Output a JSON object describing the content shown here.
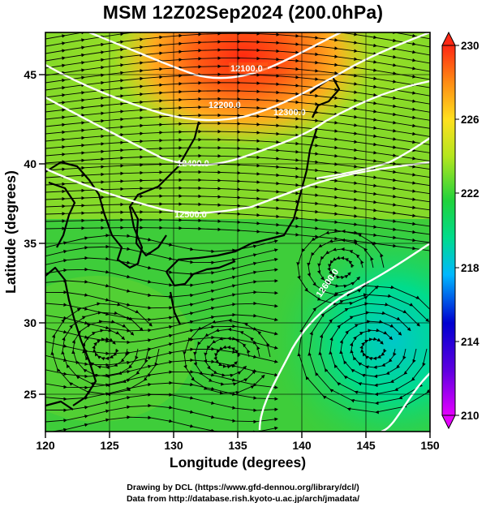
{
  "title": "MSM 12Z02Sep2024 (200.0hPa)",
  "x_axis": {
    "label": "Longitude (degrees)",
    "ticks": [
      "120",
      "125",
      "130",
      "135",
      "140",
      "145",
      "150"
    ],
    "range": [
      120,
      150
    ]
  },
  "y_axis": {
    "label": "Latitude  (degrees)",
    "ticks": [
      "25",
      "30",
      "35",
      "40",
      "45"
    ],
    "range": [
      22.4,
      47.6
    ]
  },
  "colorbar": {
    "labels": [
      "230",
      "226",
      "222",
      "218",
      "214",
      "210"
    ],
    "range": [
      210,
      230
    ],
    "colors": [
      "#e400ff",
      "#0000d0",
      "#00b8ff",
      "#00dc8c",
      "#20d23c",
      "#b4e61e",
      "#ffc81e",
      "#ff3c14"
    ]
  },
  "contours": [
    {
      "label": "12100.0"
    },
    {
      "label": "12200.0"
    },
    {
      "label": "12300.0"
    },
    {
      "label": "12400.0"
    },
    {
      "label": "12500.0"
    },
    {
      "label": "12600.0"
    }
  ],
  "footer": {
    "line1": "Drawing by DCL (https://www.gfd-dennou.org/library/dcl/)",
    "line2": "Data from http://database.rish.kyoto-u.ac.jp/arch/jmadata/"
  }
}
